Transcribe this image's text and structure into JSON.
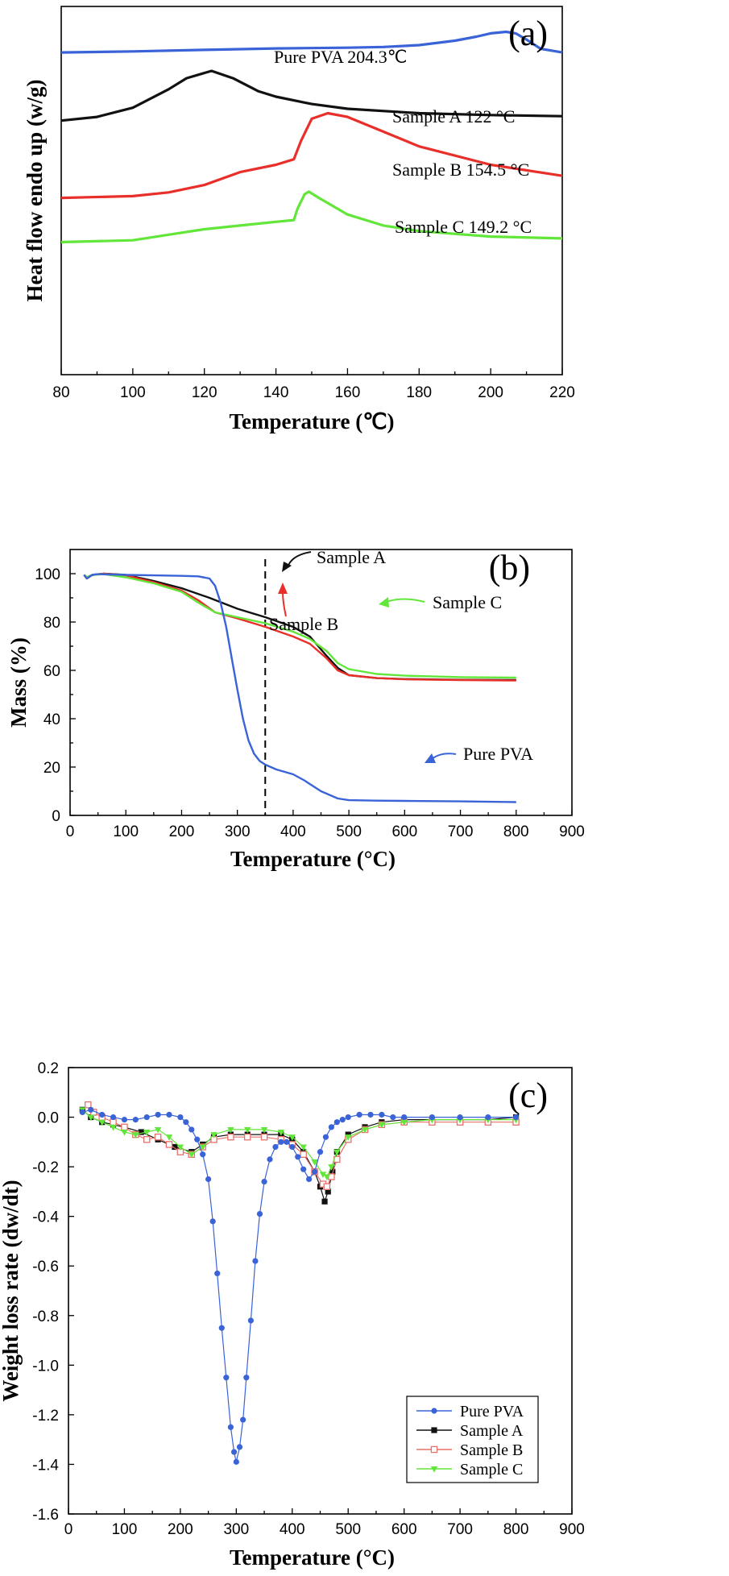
{
  "chart_data": [
    {
      "id": "a",
      "type": "line",
      "panel_label": "(a)",
      "xlabel": "Temperature (℃)",
      "ylabel": "Heat flow endo up (w/g)",
      "xlim": [
        80,
        220
      ],
      "xticks": [
        80,
        100,
        120,
        140,
        160,
        180,
        200,
        220
      ],
      "ylim": [
        0,
        10
      ],
      "yticks_shown": false,
      "series": [
        {
          "name": "Pure PVA",
          "color": "#3a63d8",
          "annotation": "Pure PVA 204.3℃",
          "x": [
            80,
            100,
            120,
            140,
            160,
            170,
            180,
            190,
            196,
            200,
            204.3,
            207,
            210,
            214,
            220
          ],
          "y": [
            8.75,
            8.78,
            8.82,
            8.86,
            8.88,
            8.9,
            8.95,
            9.07,
            9.18,
            9.27,
            9.31,
            9.27,
            9.1,
            8.85,
            8.75
          ]
        },
        {
          "name": "Sample A",
          "color": "#111111",
          "annotation": "Sample A 122 °C",
          "x": [
            80,
            90,
            100,
            110,
            115,
            122,
            128,
            135,
            140,
            150,
            160,
            180,
            200,
            220
          ],
          "y": [
            6.9,
            7.0,
            7.25,
            7.75,
            8.05,
            8.25,
            8.05,
            7.7,
            7.55,
            7.35,
            7.22,
            7.1,
            7.05,
            7.02
          ]
        },
        {
          "name": "Sample B",
          "color": "#e82f2a",
          "annotation": "Sample B 154.5 °C",
          "x": [
            80,
            100,
            110,
            120,
            130,
            140,
            145,
            147,
            150,
            154.5,
            160,
            170,
            180,
            200,
            220
          ],
          "y": [
            4.8,
            4.85,
            4.95,
            5.15,
            5.5,
            5.7,
            5.85,
            6.35,
            6.95,
            7.1,
            7.0,
            6.6,
            6.2,
            5.7,
            5.4
          ]
        },
        {
          "name": "Sample C",
          "color": "#62e63a",
          "annotation": "Sample C 149.2 °C",
          "x": [
            80,
            100,
            110,
            120,
            130,
            140,
            145,
            146,
            148,
            149.2,
            152,
            160,
            170,
            180,
            200,
            220
          ],
          "y": [
            3.6,
            3.65,
            3.8,
            3.95,
            4.05,
            4.15,
            4.2,
            4.5,
            4.9,
            4.97,
            4.8,
            4.35,
            4.05,
            3.9,
            3.75,
            3.7
          ]
        }
      ]
    },
    {
      "id": "b",
      "type": "line",
      "panel_label": "(b)",
      "xlabel": "Temperature (°C)",
      "ylabel": "Mass (%)",
      "xlim": [
        0,
        900
      ],
      "xticks": [
        0,
        100,
        200,
        300,
        400,
        500,
        600,
        700,
        800,
        900
      ],
      "ylim": [
        0,
        110
      ],
      "yticks": [
        0,
        20,
        40,
        60,
        80,
        100
      ],
      "vline_x": 350,
      "series": [
        {
          "name": "Pure PVA",
          "color": "#3a63d8",
          "annotation": "Pure PVA",
          "x": [
            25,
            30,
            40,
            50,
            100,
            150,
            200,
            230,
            250,
            260,
            270,
            280,
            290,
            300,
            310,
            320,
            330,
            340,
            350,
            370,
            400,
            420,
            450,
            480,
            500,
            550,
            600,
            700,
            800
          ],
          "y": [
            99.5,
            98,
            99.5,
            99.8,
            99.5,
            99.3,
            99.1,
            98.9,
            98,
            95,
            88,
            78,
            65,
            52,
            40,
            31,
            25.5,
            22.5,
            21,
            19,
            17,
            14.5,
            10,
            7,
            6.3,
            6.1,
            6.0,
            5.8,
            5.5
          ]
        },
        {
          "name": "Sample A",
          "color": "#111111",
          "annotation": "Sample A",
          "x": [
            25,
            30,
            40,
            60,
            100,
            150,
            200,
            250,
            300,
            350,
            400,
            430,
            460,
            480,
            500,
            550,
            600,
            700,
            800
          ],
          "y": [
            99.5,
            98.5,
            99.5,
            100,
            99.5,
            97,
            94,
            90,
            85.5,
            82,
            78,
            74,
            66,
            61,
            58,
            56.8,
            56.4,
            56.1,
            56
          ]
        },
        {
          "name": "Sample B",
          "color": "#e82f2a",
          "annotation": "Sample B",
          "x": [
            25,
            30,
            40,
            60,
            100,
            150,
            200,
            230,
            260,
            300,
            350,
            400,
            430,
            460,
            480,
            500,
            550,
            600,
            700,
            800
          ],
          "y": [
            99.5,
            98,
            99.5,
            100,
            99.3,
            96.5,
            93,
            89,
            84,
            81.5,
            78,
            74,
            71,
            65,
            60,
            58,
            56.8,
            56.3,
            56,
            55.8
          ]
        },
        {
          "name": "Sample C",
          "color": "#62e63a",
          "annotation": "Sample C",
          "x": [
            25,
            30,
            40,
            60,
            100,
            150,
            200,
            230,
            260,
            300,
            350,
            400,
            430,
            460,
            480,
            500,
            550,
            600,
            700,
            800
          ],
          "y": [
            99.5,
            98.5,
            99.5,
            99.8,
            98.5,
            96,
            92.5,
            88,
            84,
            82,
            79.5,
            76,
            73,
            68,
            63,
            60.5,
            58.5,
            57.8,
            57.2,
            57
          ]
        }
      ]
    },
    {
      "id": "c",
      "type": "scatter",
      "panel_label": "(c)",
      "xlabel": "Temperature (°C)",
      "ylabel": "Weight loss rate (dw/dt)",
      "xlim": [
        0,
        900
      ],
      "xticks": [
        0,
        100,
        200,
        300,
        400,
        500,
        600,
        700,
        800,
        900
      ],
      "ylim": [
        -1.6,
        0.2
      ],
      "yticks": [
        0.2,
        0.0,
        -0.2,
        -0.4,
        -0.6,
        -0.8,
        -1.0,
        -1.2,
        -1.4,
        -1.6
      ],
      "ytick_labels": [
        "0.2",
        "0.0",
        "-0.2",
        "-0.4",
        "-0.6",
        "-0.8",
        "-1.0",
        "-1.2",
        "-1.4",
        "-1.6"
      ],
      "legend_position": "bottom-right",
      "series": [
        {
          "name": "Pure PVA",
          "color": "#3a63d8",
          "marker": "circle",
          "x": [
            25,
            40,
            60,
            80,
            100,
            120,
            140,
            160,
            180,
            200,
            210,
            220,
            230,
            240,
            250,
            258,
            266,
            274,
            282,
            290,
            296,
            300,
            306,
            312,
            318,
            326,
            334,
            342,
            350,
            360,
            370,
            380,
            390,
            400,
            410,
            420,
            430,
            440,
            450,
            460,
            470,
            480,
            490,
            500,
            520,
            540,
            560,
            580,
            600,
            650,
            700,
            750,
            800
          ],
          "y": [
            0.02,
            0.03,
            0.01,
            0.0,
            -0.01,
            -0.01,
            0.0,
            0.01,
            0.01,
            0.0,
            -0.02,
            -0.05,
            -0.09,
            -0.15,
            -0.25,
            -0.42,
            -0.63,
            -0.85,
            -1.05,
            -1.25,
            -1.35,
            -1.39,
            -1.33,
            -1.22,
            -1.05,
            -0.82,
            -0.58,
            -0.39,
            -0.26,
            -0.17,
            -0.12,
            -0.1,
            -0.1,
            -0.12,
            -0.16,
            -0.21,
            -0.25,
            -0.22,
            -0.14,
            -0.08,
            -0.04,
            -0.02,
            -0.01,
            0.0,
            0.01,
            0.01,
            0.01,
            0.0,
            0.0,
            0.0,
            0.0,
            0.0,
            0.0
          ]
        },
        {
          "name": "Sample A",
          "color": "#111111",
          "marker": "square",
          "x": [
            25,
            40,
            60,
            80,
            100,
            130,
            160,
            190,
            220,
            240,
            260,
            290,
            320,
            350,
            380,
            400,
            420,
            440,
            450,
            458,
            464,
            472,
            480,
            500,
            530,
            560,
            600,
            650,
            700,
            750,
            800
          ],
          "y": [
            0.03,
            0.0,
            -0.02,
            -0.03,
            -0.04,
            -0.06,
            -0.09,
            -0.12,
            -0.14,
            -0.11,
            -0.08,
            -0.07,
            -0.07,
            -0.07,
            -0.07,
            -0.09,
            -0.14,
            -0.22,
            -0.28,
            -0.34,
            -0.3,
            -0.22,
            -0.14,
            -0.07,
            -0.04,
            -0.02,
            -0.01,
            -0.01,
            -0.01,
            -0.01,
            0.0
          ]
        },
        {
          "name": "Sample B",
          "color": "#e8706a",
          "marker": "open-square",
          "x": [
            35,
            45,
            60,
            80,
            100,
            120,
            140,
            160,
            180,
            200,
            220,
            240,
            260,
            290,
            320,
            350,
            380,
            400,
            420,
            440,
            455,
            462,
            470,
            480,
            500,
            530,
            560,
            600,
            650,
            700,
            750,
            800
          ],
          "y": [
            0.05,
            0.02,
            0.0,
            -0.02,
            -0.04,
            -0.07,
            -0.09,
            -0.08,
            -0.11,
            -0.14,
            -0.15,
            -0.12,
            -0.09,
            -0.08,
            -0.08,
            -0.08,
            -0.09,
            -0.11,
            -0.15,
            -0.22,
            -0.27,
            -0.28,
            -0.24,
            -0.17,
            -0.09,
            -0.05,
            -0.03,
            -0.02,
            -0.02,
            -0.02,
            -0.02,
            -0.02
          ]
        },
        {
          "name": "Sample C",
          "color": "#62e63a",
          "marker": "triangle-down",
          "x": [
            25,
            40,
            60,
            80,
            100,
            120,
            140,
            160,
            180,
            200,
            220,
            240,
            260,
            290,
            320,
            350,
            380,
            400,
            420,
            440,
            455,
            462,
            470,
            480,
            500,
            530,
            560,
            600,
            650,
            700,
            750,
            800
          ],
          "y": [
            0.03,
            0.0,
            -0.02,
            -0.04,
            -0.06,
            -0.07,
            -0.06,
            -0.05,
            -0.08,
            -0.12,
            -0.15,
            -0.12,
            -0.07,
            -0.05,
            -0.05,
            -0.05,
            -0.06,
            -0.08,
            -0.12,
            -0.18,
            -0.23,
            -0.24,
            -0.2,
            -0.14,
            -0.08,
            -0.05,
            -0.03,
            -0.02,
            -0.01,
            -0.01,
            -0.01,
            -0.01
          ]
        }
      ]
    }
  ]
}
